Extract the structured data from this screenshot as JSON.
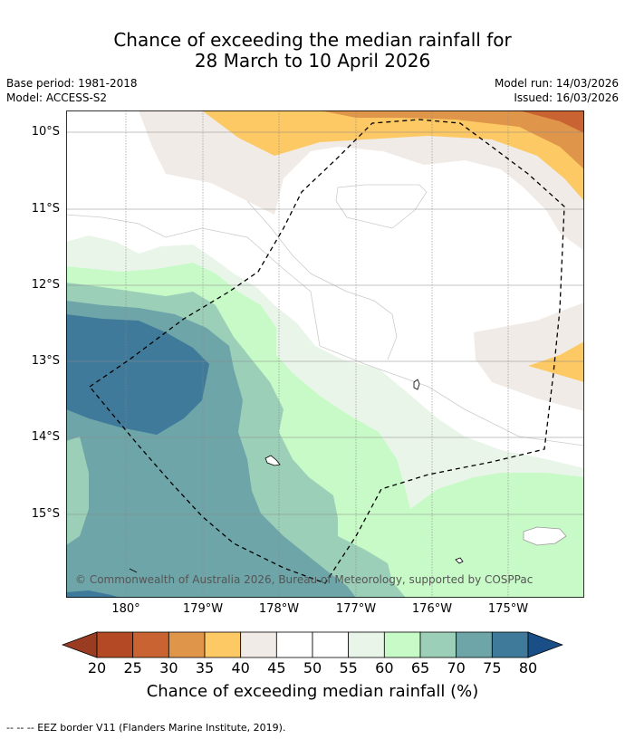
{
  "title": {
    "line1": "Chance of exceeding the median rainfall for",
    "line2": "28 March to 10 April 2026"
  },
  "meta": {
    "base_period": "Base period: 1981-2018",
    "model": "Model: ACCESS-S2",
    "model_run": "Model run: 14/03/2026",
    "issued": "Issued: 16/03/2026"
  },
  "map": {
    "latitude_labels": [
      "10°S",
      "11°S",
      "12°S",
      "13°S",
      "14°S",
      "15°S"
    ],
    "longitude_labels": [
      "180°",
      "179°W",
      "178°W",
      "177°W",
      "176°W",
      "175°W"
    ],
    "copyright": "© Commonwealth of Australia 2026, Bureau of Meteorology, supported by COSPPac"
  },
  "colorbar": {
    "ticks": [
      "20",
      "25",
      "30",
      "35",
      "40",
      "45",
      "50",
      "55",
      "60",
      "65",
      "70",
      "75",
      "80"
    ],
    "colors": [
      "#b34a25",
      "#c96432",
      "#e0964a",
      "#fdc964",
      "#f0ebe6",
      "#ffffff",
      "#ffffff",
      "#e9f5e8",
      "#c8fac8",
      "#9ccfb8",
      "#6ea5a8",
      "#3f7a9a"
    ],
    "under_color": "#9a3c22",
    "over_color": "#1a4e86",
    "label": "Chance of exceeding median rainfall (%)"
  },
  "legend": {
    "eez_border": "--  --  -- EEZ border V11 (Flanders Marine Institute, 2019)."
  }
}
